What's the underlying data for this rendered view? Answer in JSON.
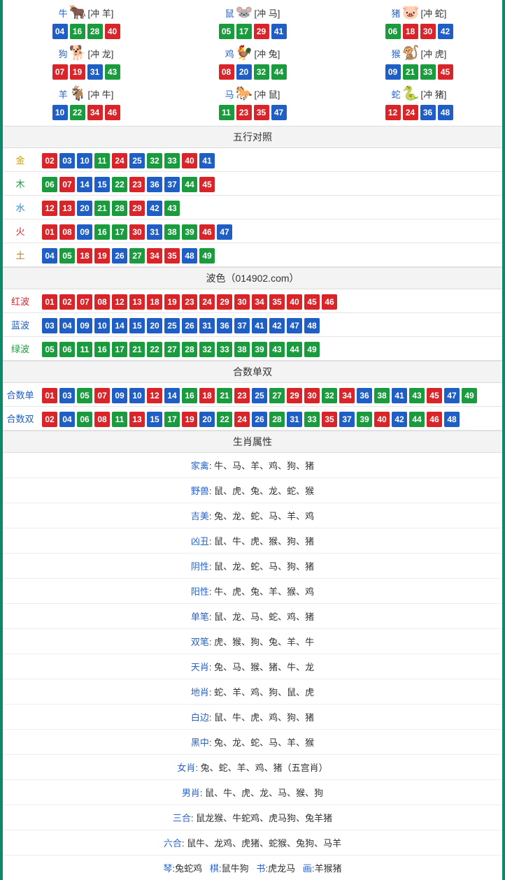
{
  "colors": {
    "red": "#d9252a",
    "blue": "#1f5fc5",
    "green": "#1a9c3e",
    "border": "#0a8a6a"
  },
  "ball_num_colors": {
    "red": [
      "01",
      "02",
      "07",
      "08",
      "12",
      "13",
      "18",
      "19",
      "23",
      "24",
      "29",
      "30",
      "34",
      "35",
      "40",
      "45",
      "46"
    ],
    "blue": [
      "03",
      "04",
      "09",
      "10",
      "14",
      "15",
      "20",
      "25",
      "26",
      "31",
      "36",
      "37",
      "41",
      "42",
      "47",
      "48"
    ],
    "green": [
      "05",
      "06",
      "11",
      "16",
      "17",
      "21",
      "22",
      "27",
      "28",
      "32",
      "33",
      "38",
      "39",
      "43",
      "44",
      "49"
    ]
  },
  "zodiac": [
    {
      "name": "牛",
      "emoji": "🐂",
      "clash": "[冲 羊]",
      "balls": [
        "04",
        "16",
        "28",
        "40"
      ]
    },
    {
      "name": "鼠",
      "emoji": "🐭",
      "clash": "[冲 马]",
      "balls": [
        "05",
        "17",
        "29",
        "41"
      ]
    },
    {
      "name": "猪",
      "emoji": "🐷",
      "clash": "[冲 蛇]",
      "balls": [
        "06",
        "18",
        "30",
        "42"
      ]
    },
    {
      "name": "狗",
      "emoji": "🐕",
      "clash": "[冲 龙]",
      "balls": [
        "07",
        "19",
        "31",
        "43"
      ]
    },
    {
      "name": "鸡",
      "emoji": "🐓",
      "clash": "[冲 兔]",
      "balls": [
        "08",
        "20",
        "32",
        "44"
      ]
    },
    {
      "name": "猴",
      "emoji": "🐒",
      "clash": "[冲 虎]",
      "balls": [
        "09",
        "21",
        "33",
        "45"
      ]
    },
    {
      "name": "羊",
      "emoji": "🐐",
      "clash": "[冲 牛]",
      "balls": [
        "10",
        "22",
        "34",
        "46"
      ]
    },
    {
      "name": "马",
      "emoji": "🐎",
      "clash": "[冲 鼠]",
      "balls": [
        "11",
        "23",
        "35",
        "47"
      ]
    },
    {
      "name": "蛇",
      "emoji": "🐍",
      "clash": "[冲 猪]",
      "balls": [
        "12",
        "24",
        "36",
        "48"
      ]
    }
  ],
  "five_elements": {
    "title": "五行对照",
    "rows": [
      {
        "label": "金",
        "label_class": "lab-gold",
        "balls": [
          "02",
          "03",
          "10",
          "11",
          "24",
          "25",
          "32",
          "33",
          "40",
          "41"
        ]
      },
      {
        "label": "木",
        "label_class": "lab-wood",
        "balls": [
          "06",
          "07",
          "14",
          "15",
          "22",
          "23",
          "36",
          "37",
          "44",
          "45"
        ]
      },
      {
        "label": "水",
        "label_class": "lab-water",
        "balls": [
          "12",
          "13",
          "20",
          "21",
          "28",
          "29",
          "42",
          "43"
        ]
      },
      {
        "label": "火",
        "label_class": "lab-fire",
        "balls": [
          "01",
          "08",
          "09",
          "16",
          "17",
          "30",
          "31",
          "38",
          "39",
          "46",
          "47"
        ]
      },
      {
        "label": "土",
        "label_class": "lab-earth",
        "balls": [
          "04",
          "05",
          "18",
          "19",
          "26",
          "27",
          "34",
          "35",
          "48",
          "49"
        ]
      }
    ]
  },
  "wave_color": {
    "title": "波色（014902.com）",
    "rows": [
      {
        "label": "红波",
        "label_class": "lab-red",
        "balls": [
          "01",
          "02",
          "07",
          "08",
          "12",
          "13",
          "18",
          "19",
          "23",
          "24",
          "29",
          "30",
          "34",
          "35",
          "40",
          "45",
          "46"
        ]
      },
      {
        "label": "蓝波",
        "label_class": "lab-blue",
        "balls": [
          "03",
          "04",
          "09",
          "10",
          "14",
          "15",
          "20",
          "25",
          "26",
          "31",
          "36",
          "37",
          "41",
          "42",
          "47",
          "48"
        ]
      },
      {
        "label": "绿波",
        "label_class": "lab-green",
        "balls": [
          "05",
          "06",
          "11",
          "16",
          "17",
          "21",
          "22",
          "27",
          "28",
          "32",
          "33",
          "38",
          "39",
          "43",
          "44",
          "49"
        ]
      }
    ]
  },
  "digit_sum": {
    "title": "合数单双",
    "rows": [
      {
        "label": "合数单",
        "label_class": "lab-blue",
        "balls": [
          "01",
          "03",
          "05",
          "07",
          "09",
          "10",
          "12",
          "14",
          "16",
          "18",
          "21",
          "23",
          "25",
          "27",
          "29",
          "30",
          "32",
          "34",
          "36",
          "38",
          "41",
          "43",
          "45",
          "47",
          "49"
        ]
      },
      {
        "label": "合数双",
        "label_class": "lab-blue",
        "balls": [
          "02",
          "04",
          "06",
          "08",
          "11",
          "13",
          "15",
          "17",
          "19",
          "20",
          "22",
          "24",
          "26",
          "28",
          "31",
          "33",
          "35",
          "37",
          "39",
          "40",
          "42",
          "44",
          "46",
          "48"
        ]
      }
    ]
  },
  "attributes": {
    "title": "生肖属性",
    "rows": [
      {
        "key": "家禽",
        "sep": ": ",
        "val": "牛、马、羊、鸡、狗、猪"
      },
      {
        "key": "野兽",
        "sep": ": ",
        "val": "鼠、虎、兔、龙、蛇、猴"
      },
      {
        "key": "吉美",
        "sep": ": ",
        "val": "兔、龙、蛇、马、羊、鸡"
      },
      {
        "key": "凶丑",
        "sep": ": ",
        "val": "鼠、牛、虎、猴、狗、猪"
      },
      {
        "key": "阴性",
        "sep": ": ",
        "val": "鼠、龙、蛇、马、狗、猪"
      },
      {
        "key": "阳性",
        "sep": ": ",
        "val": "牛、虎、兔、羊、猴、鸡"
      },
      {
        "key": "单笔",
        "sep": ": ",
        "val": "鼠、龙、马、蛇、鸡、猪"
      },
      {
        "key": "双笔",
        "sep": ": ",
        "val": "虎、猴、狗、兔、羊、牛"
      },
      {
        "key": "天肖",
        "sep": ": ",
        "val": "兔、马、猴、猪、牛、龙"
      },
      {
        "key": "地肖",
        "sep": ": ",
        "val": "蛇、羊、鸡、狗、鼠、虎"
      },
      {
        "key": "白边",
        "sep": ": ",
        "val": "鼠、牛、虎、鸡、狗、猪"
      },
      {
        "key": "黑中",
        "sep": ": ",
        "val": "兔、龙、蛇、马、羊、猴"
      },
      {
        "key": "女肖",
        "sep": ": ",
        "val": "兔、蛇、羊、鸡、猪（五宫肖）"
      },
      {
        "key": "男肖",
        "sep": ": ",
        "val": "鼠、牛、虎、龙、马、猴、狗"
      },
      {
        "key": "三合",
        "sep": ": ",
        "val": "鼠龙猴、牛蛇鸡、虎马狗、兔羊猪"
      },
      {
        "key": "六合",
        "sep": ": ",
        "val": "鼠牛、龙鸡、虎猪、蛇猴、兔狗、马羊"
      }
    ],
    "four_arts": [
      {
        "key": "琴",
        "val": "兔蛇鸡"
      },
      {
        "key": "棋",
        "val": "鼠牛狗"
      },
      {
        "key": "书",
        "val": "虎龙马"
      },
      {
        "key": "画",
        "val": "羊猴猪"
      }
    ]
  }
}
